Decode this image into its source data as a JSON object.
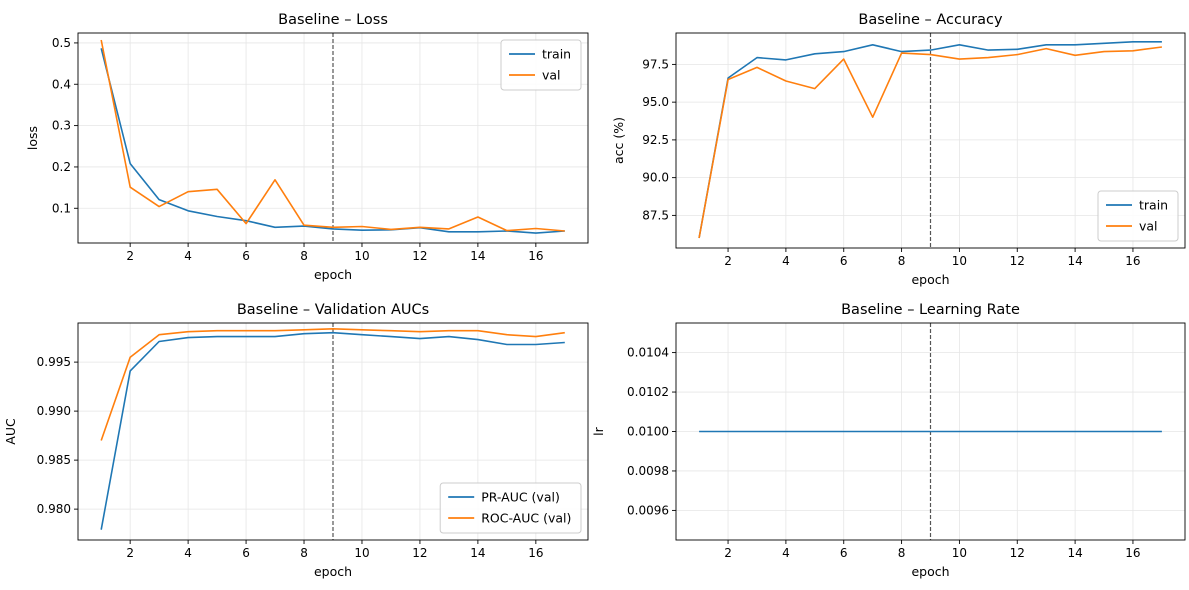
{
  "figure": {
    "background": "#ffffff"
  },
  "colors": {
    "blue": "#1f77b4",
    "orange": "#ff7f0e",
    "grid": "#e6e6e6",
    "vline": "#555555"
  },
  "chart_data": [
    {
      "id": "loss",
      "type": "line",
      "title": "Baseline – Loss",
      "xlabel": "epoch",
      "ylabel": "loss",
      "x": [
        1,
        2,
        3,
        4,
        5,
        6,
        7,
        8,
        9,
        10,
        11,
        12,
        13,
        14,
        15,
        16,
        17
      ],
      "xlim": [
        0.2,
        17.8
      ],
      "ylim": [
        0.016,
        0.524
      ],
      "xticks": [
        2,
        4,
        6,
        8,
        10,
        12,
        14,
        16
      ],
      "xtick_labels": [
        "2",
        "4",
        "6",
        "8",
        "10",
        "12",
        "14",
        "16"
      ],
      "yticks": [
        0.1,
        0.2,
        0.3,
        0.4,
        0.5
      ],
      "ytick_labels": [
        "0.1",
        "0.2",
        "0.3",
        "0.4",
        "0.5"
      ],
      "grid": true,
      "legend_loc": "top-right",
      "vline_x": 9,
      "series": [
        {
          "name": "train",
          "color": "#1f77b4",
          "values": [
            0.487,
            0.208,
            0.121,
            0.094,
            0.08,
            0.07,
            0.054,
            0.057,
            0.05,
            0.047,
            0.048,
            0.053,
            0.043,
            0.043,
            0.045,
            0.04,
            0.045
          ]
        },
        {
          "name": "val",
          "color": "#ff7f0e",
          "values": [
            0.507,
            0.151,
            0.104,
            0.14,
            0.146,
            0.063,
            0.169,
            0.059,
            0.054,
            0.056,
            0.049,
            0.054,
            0.05,
            0.079,
            0.046,
            0.051,
            0.045
          ]
        }
      ]
    },
    {
      "id": "accuracy",
      "type": "line",
      "title": "Baseline – Accuracy",
      "xlabel": "epoch",
      "ylabel": "acc (%)",
      "x": [
        1,
        2,
        3,
        4,
        5,
        6,
        7,
        8,
        9,
        10,
        11,
        12,
        13,
        14,
        15,
        16,
        17
      ],
      "xlim": [
        0.2,
        17.8
      ],
      "ylim": [
        85.34,
        99.58
      ],
      "xticks": [
        2,
        4,
        6,
        8,
        10,
        12,
        14,
        16
      ],
      "xtick_labels": [
        "2",
        "4",
        "6",
        "8",
        "10",
        "12",
        "14",
        "16"
      ],
      "yticks": [
        87.5,
        90.0,
        92.5,
        95.0,
        97.5
      ],
      "ytick_labels": [
        "87.5",
        "90.0",
        "92.5",
        "95.0",
        "97.5"
      ],
      "grid": true,
      "legend_loc": "bottom-right",
      "vline_x": 9,
      "series": [
        {
          "name": "train",
          "color": "#1f77b4",
          "values": [
            86.0,
            96.6,
            97.95,
            97.8,
            98.2,
            98.35,
            98.8,
            98.35,
            98.45,
            98.8,
            98.45,
            98.5,
            98.8,
            98.8,
            98.9,
            99.0,
            99.0
          ]
        },
        {
          "name": "val",
          "color": "#ff7f0e",
          "values": [
            86.0,
            96.5,
            97.3,
            96.4,
            95.9,
            97.85,
            94.0,
            98.25,
            98.15,
            97.85,
            97.95,
            98.15,
            98.55,
            98.1,
            98.35,
            98.4,
            98.65
          ]
        }
      ]
    },
    {
      "id": "aucs",
      "type": "line",
      "title": "Baseline – Validation AUCs",
      "xlabel": "epoch",
      "ylabel": "AUC",
      "x": [
        1,
        2,
        3,
        4,
        5,
        6,
        7,
        8,
        9,
        10,
        11,
        12,
        13,
        14,
        15,
        16,
        17
      ],
      "xlim": [
        0.2,
        17.8
      ],
      "ylim": [
        0.97685,
        0.99899
      ],
      "xticks": [
        2,
        4,
        6,
        8,
        10,
        12,
        14,
        16
      ],
      "xtick_labels": [
        "2",
        "4",
        "6",
        "8",
        "10",
        "12",
        "14",
        "16"
      ],
      "yticks": [
        0.98,
        0.985,
        0.99,
        0.995
      ],
      "ytick_labels": [
        "0.980",
        "0.985",
        "0.990",
        "0.995"
      ],
      "grid": true,
      "legend_loc": "bottom-right",
      "vline_x": 9,
      "series": [
        {
          "name": "PR-AUC (val)",
          "color": "#1f77b4",
          "values": [
            0.9779,
            0.9941,
            0.9971,
            0.9975,
            0.9976,
            0.9976,
            0.9976,
            0.9979,
            0.998,
            0.9978,
            0.9976,
            0.9974,
            0.9976,
            0.9973,
            0.9968,
            0.9968,
            0.997
          ]
        },
        {
          "name": "ROC-AUC (val)",
          "color": "#ff7f0e",
          "values": [
            0.987,
            0.9955,
            0.9978,
            0.9981,
            0.9982,
            0.9982,
            0.9982,
            0.9983,
            0.9984,
            0.9983,
            0.9982,
            0.9981,
            0.9982,
            0.9982,
            0.9978,
            0.9976,
            0.998
          ]
        }
      ]
    },
    {
      "id": "lr",
      "type": "line",
      "title": "Baseline – Learning Rate",
      "xlabel": "epoch",
      "ylabel": "lr",
      "x": [
        1,
        2,
        3,
        4,
        5,
        6,
        7,
        8,
        9,
        10,
        11,
        12,
        13,
        14,
        15,
        16,
        17
      ],
      "xlim": [
        0.2,
        17.8
      ],
      "ylim": [
        0.00945,
        0.01055
      ],
      "xticks": [
        2,
        4,
        6,
        8,
        10,
        12,
        14,
        16
      ],
      "xtick_labels": [
        "2",
        "4",
        "6",
        "8",
        "10",
        "12",
        "14",
        "16"
      ],
      "yticks": [
        0.0096,
        0.0098,
        0.01,
        0.0102,
        0.0104
      ],
      "ytick_labels": [
        "0.0096",
        "0.0098",
        "0.0100",
        "0.0102",
        "0.0104"
      ],
      "grid": true,
      "legend_loc": "",
      "vline_x": 9,
      "series": [
        {
          "color": "#1f77b4",
          "values": [
            0.01,
            0.01,
            0.01,
            0.01,
            0.01,
            0.01,
            0.01,
            0.01,
            0.01,
            0.01,
            0.01,
            0.01,
            0.01,
            0.01,
            0.01,
            0.01,
            0.01
          ]
        }
      ]
    }
  ]
}
